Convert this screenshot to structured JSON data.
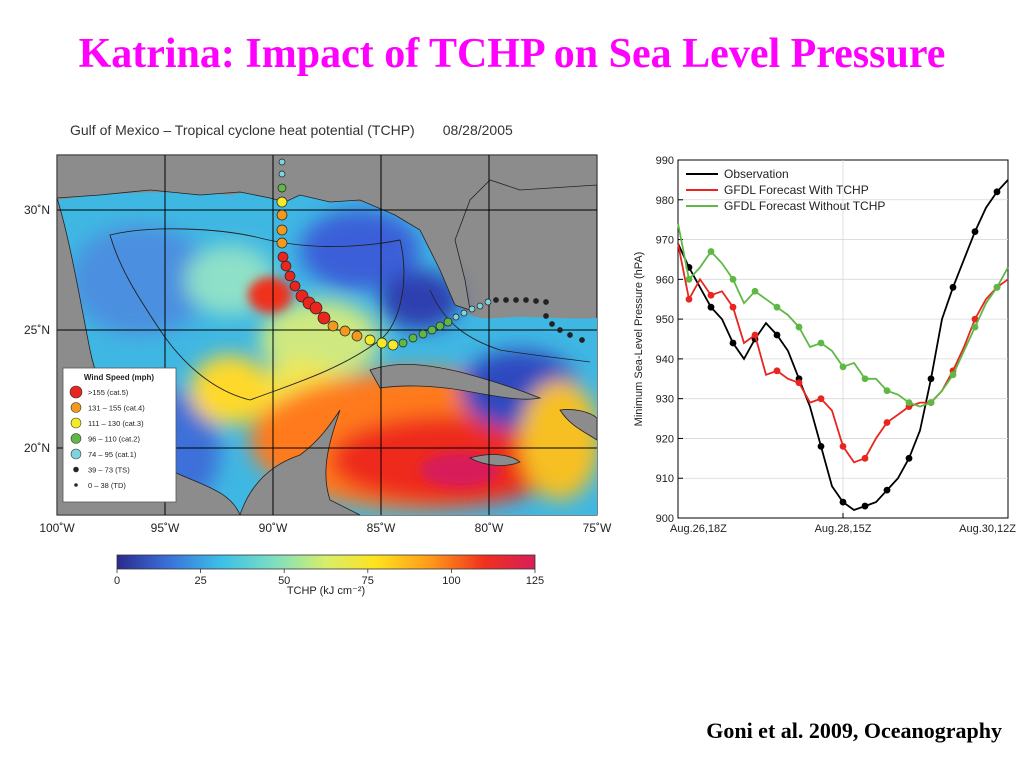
{
  "slide": {
    "title": "Katrina: Impact of TCHP on Sea Level Pressure",
    "citation": "Goni et al. 2009, Oceanography"
  },
  "map": {
    "title": "Gulf of Mexico – Tropical cyclone heat potential (TCHP)",
    "date": "08/28/2005",
    "lat_labels": [
      "30˚N",
      "25˚N",
      "20˚N"
    ],
    "lon_labels": [
      "100˚W",
      "95˚W",
      "90˚W",
      "85˚W",
      "80˚W",
      "75˚W"
    ],
    "legend": {
      "title": "Wind Speed (mph)",
      "items": [
        {
          "label": ">155 (cat.5)",
          "color": "#e8251f"
        },
        {
          "label": "131 – 155 (cat.4)",
          "color": "#f39a1e"
        },
        {
          "label": "111 – 130 (cat.3)",
          "color": "#f4ea28"
        },
        {
          "label": "96 – 110 (cat.2)",
          "color": "#5fb845"
        },
        {
          "label": "74 – 95 (cat.1)",
          "color": "#7fd3dc"
        },
        {
          "label": "39 – 73 (TS)",
          "color": "#222222"
        },
        {
          "label": "0 – 38 (TD)",
          "color": "#222222"
        }
      ]
    },
    "colorbar": {
      "ticks": [
        "0",
        "25",
        "50",
        "75",
        "100",
        "125"
      ],
      "label": "TCHP (kJ cm⁻²)",
      "colors": [
        "#2a2a8c",
        "#3a6fd8",
        "#3cc0e8",
        "#7fe0c0",
        "#d8ee6a",
        "#ffe21e",
        "#ff9a1a",
        "#f0301e",
        "#d81e5a"
      ]
    }
  },
  "chart_data": {
    "type": "line",
    "title": "",
    "xlabel": "",
    "ylabel": "Minimum Sea-Level Pressure (hPA)",
    "x_tick_labels": [
      "Aug.26,18Z",
      "Aug.28,15Z",
      "Aug.30,12Z"
    ],
    "x_range": [
      0,
      90
    ],
    "ylim": [
      900,
      990
    ],
    "y_ticks": [
      900,
      910,
      920,
      930,
      940,
      950,
      960,
      970,
      980,
      990
    ],
    "grid": true,
    "legend_position": "top-left",
    "series": [
      {
        "name": "Observation",
        "color": "#000000",
        "x": [
          0,
          3,
          6,
          9,
          12,
          15,
          18,
          21,
          24,
          27,
          30,
          33,
          36,
          39,
          42,
          45,
          48,
          51,
          54,
          57,
          60,
          63,
          66,
          69,
          72,
          75,
          78,
          81,
          84,
          87,
          90
        ],
        "y": [
          969,
          963,
          958,
          953,
          950,
          944,
          940,
          945,
          949,
          946,
          942,
          935,
          928,
          918,
          908,
          904,
          902,
          903,
          904,
          907,
          910,
          915,
          922,
          935,
          950,
          958,
          965,
          972,
          978,
          982,
          985
        ]
      },
      {
        "name": "GFDL Forecast With TCHP",
        "color": "#e8251f",
        "x": [
          0,
          3,
          6,
          9,
          12,
          15,
          18,
          21,
          24,
          27,
          30,
          33,
          36,
          39,
          42,
          45,
          48,
          51,
          54,
          57,
          60,
          63,
          66,
          69,
          72,
          75,
          78,
          81,
          84,
          87,
          90
        ],
        "y": [
          969,
          955,
          960,
          956,
          957,
          953,
          944,
          946,
          936,
          937,
          935,
          934,
          929,
          930,
          927,
          918,
          914,
          915,
          920,
          924,
          926,
          928,
          929,
          929,
          932,
          937,
          943,
          950,
          955,
          958,
          960
        ]
      },
      {
        "name": "GFDL Forecast Without TCHP",
        "color": "#5fb845",
        "x": [
          0,
          3,
          6,
          9,
          12,
          15,
          18,
          21,
          24,
          27,
          30,
          33,
          36,
          39,
          42,
          45,
          48,
          51,
          54,
          57,
          60,
          63,
          66,
          69,
          72,
          75,
          78,
          81,
          84,
          87,
          90
        ],
        "y": [
          974,
          960,
          963,
          967,
          964,
          960,
          954,
          957,
          955,
          953,
          951,
          948,
          943,
          944,
          942,
          938,
          939,
          935,
          935,
          932,
          931,
          929,
          928,
          929,
          932,
          936,
          942,
          948,
          954,
          958,
          963
        ]
      }
    ]
  }
}
